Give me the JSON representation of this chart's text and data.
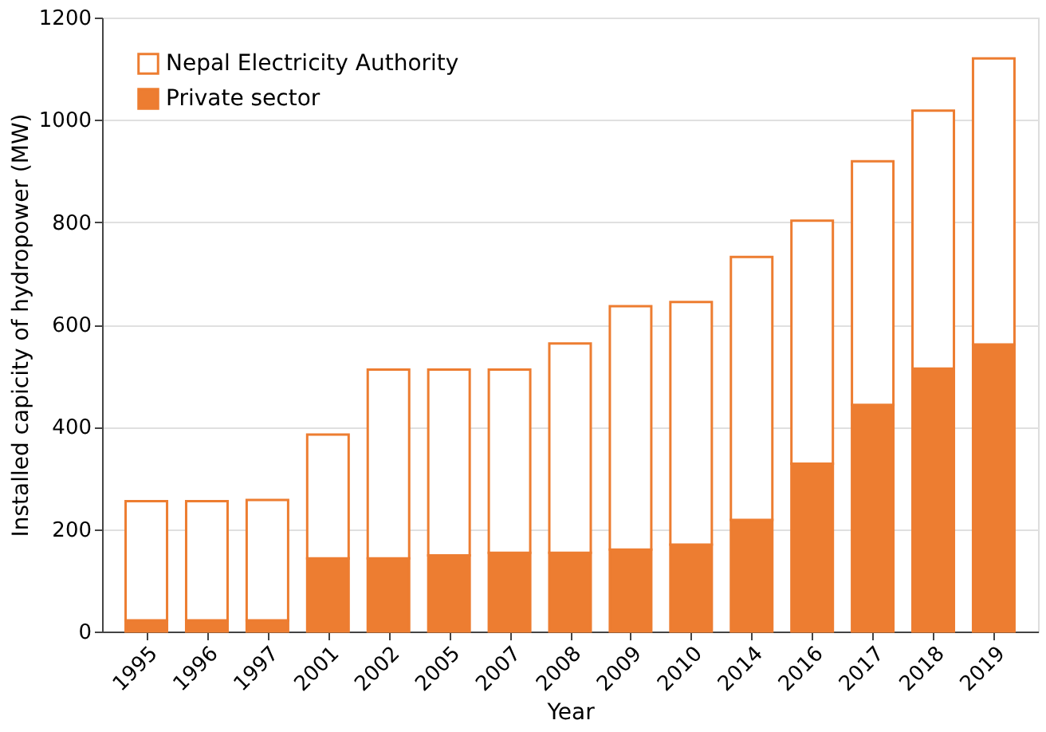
{
  "chart_data": {
    "type": "bar",
    "stacked": true,
    "xlabel": "Year",
    "ylabel": "Installed capicity of hydropower (MW)",
    "categories": [
      "1995",
      "1996",
      "1997",
      "2001",
      "2002",
      "2005",
      "2007",
      "2008",
      "2009",
      "2010",
      "2014",
      "2016",
      "2017",
      "2018",
      "2019"
    ],
    "series": [
      {
        "name": "Private sector",
        "color": "#ed7d31",
        "values": [
          22,
          22,
          22,
          143,
          143,
          149,
          154,
          154,
          160,
          170,
          218,
          328,
          443,
          514,
          561
        ]
      },
      {
        "name": "Nepal Electricity Authority",
        "color": "#ffffff",
        "values": [
          233,
          233,
          235,
          242,
          369,
          363,
          358,
          409,
          476,
          474,
          514,
          475,
          476,
          504,
          559
        ]
      }
    ],
    "ylim": [
      0,
      1200
    ],
    "yticks": [
      0,
      200,
      400,
      600,
      800,
      1000,
      1200
    ],
    "grid": "y",
    "legend": "top left"
  }
}
